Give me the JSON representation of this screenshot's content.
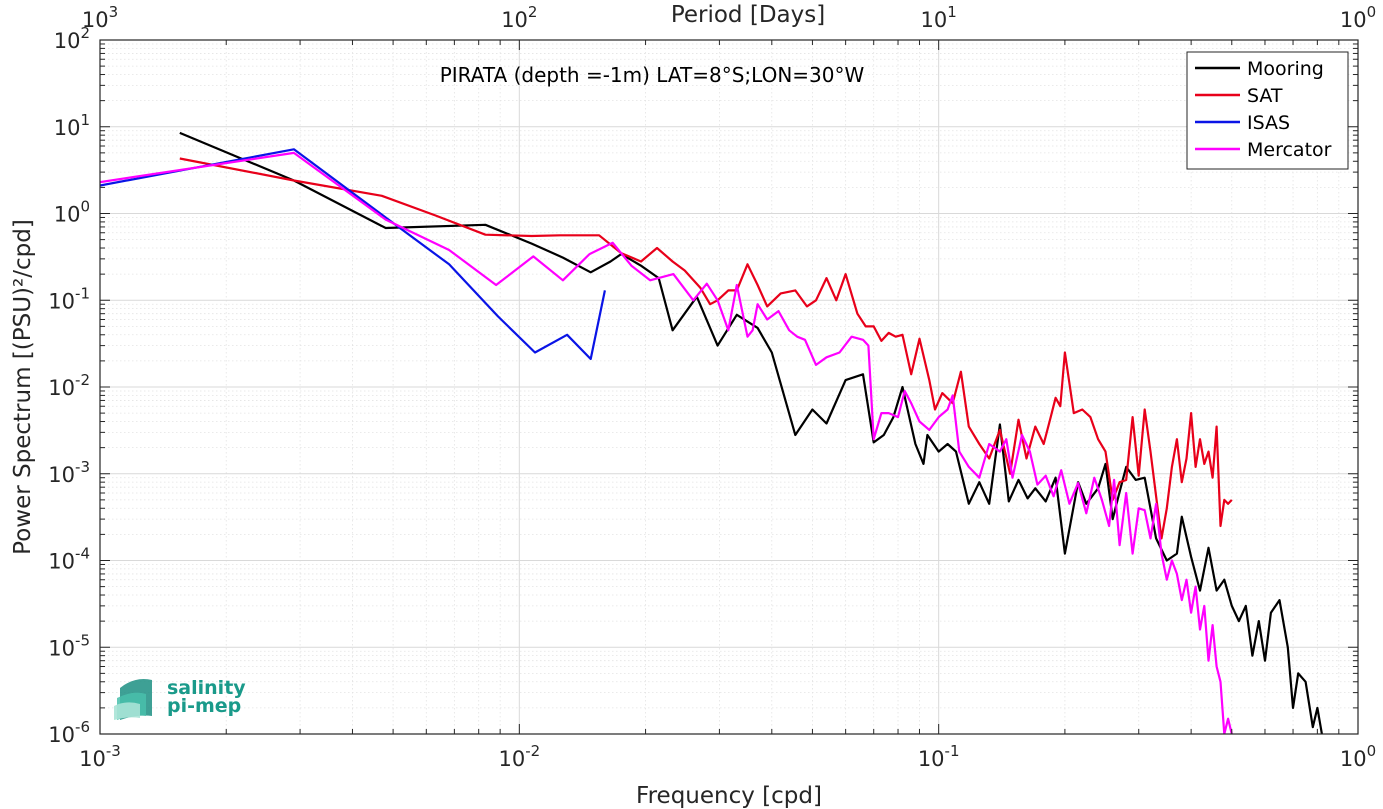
{
  "chart_data": {
    "type": "line",
    "x_scale": "log",
    "y_scale": "log",
    "xlim": [
      0.001,
      1
    ],
    "ylim": [
      1e-06,
      100
    ],
    "grid": true,
    "xlabel": "Frequency [cpd]",
    "ylabel": "Power Spectrum [(PSU)²/cpd]",
    "top_xlabel": "Period [Days]",
    "annotation": "PIRATA (depth =-1m) LAT=8°S;LON=30°W",
    "legend_position": "top-right",
    "x_ticks": [
      {
        "base": "10",
        "exp": "-3",
        "value": 0.001
      },
      {
        "base": "10",
        "exp": "-2",
        "value": 0.01
      },
      {
        "base": "10",
        "exp": "-1",
        "value": 0.1
      },
      {
        "base": "10",
        "exp": "0",
        "value": 1
      }
    ],
    "top_x_ticks": [
      {
        "base": "10",
        "exp": "3",
        "value": 0.001
      },
      {
        "base": "10",
        "exp": "2",
        "value": 0.01
      },
      {
        "base": "10",
        "exp": "1",
        "value": 0.1
      },
      {
        "base": "10",
        "exp": "0",
        "value": 1
      }
    ],
    "y_ticks": [
      {
        "base": "10",
        "exp": "2",
        "value": 100
      },
      {
        "base": "10",
        "exp": "1",
        "value": 10
      },
      {
        "base": "10",
        "exp": "0",
        "value": 1
      },
      {
        "base": "10",
        "exp": "-1",
        "value": 0.1
      },
      {
        "base": "10",
        "exp": "-2",
        "value": 0.01
      },
      {
        "base": "10",
        "exp": "-3",
        "value": 0.001
      },
      {
        "base": "10",
        "exp": "-4",
        "value": 0.0001
      },
      {
        "base": "10",
        "exp": "-5",
        "value": 1e-05
      },
      {
        "base": "10",
        "exp": "-6",
        "value": 1e-06
      }
    ],
    "series": [
      {
        "name": "Mooring",
        "color": "#000000",
        "points": [
          [
            0.00155,
            8.5
          ],
          [
            0.0029,
            2.4
          ],
          [
            0.0048,
            0.68
          ],
          [
            0.0083,
            0.74
          ],
          [
            0.0107,
            0.45
          ],
          [
            0.0127,
            0.31
          ],
          [
            0.0148,
            0.21
          ],
          [
            0.0165,
            0.28
          ],
          [
            0.0175,
            0.34
          ],
          [
            0.0195,
            0.25
          ],
          [
            0.0215,
            0.18
          ],
          [
            0.0232,
            0.045
          ],
          [
            0.0265,
            0.11
          ],
          [
            0.0297,
            0.03
          ],
          [
            0.033,
            0.068
          ],
          [
            0.037,
            0.048
          ],
          [
            0.04,
            0.025
          ],
          [
            0.0455,
            0.0028
          ],
          [
            0.05,
            0.0055
          ],
          [
            0.054,
            0.0038
          ],
          [
            0.06,
            0.012
          ],
          [
            0.066,
            0.014
          ],
          [
            0.07,
            0.0023
          ],
          [
            0.074,
            0.0028
          ],
          [
            0.078,
            0.0045
          ],
          [
            0.082,
            0.01
          ],
          [
            0.088,
            0.0022
          ],
          [
            0.092,
            0.0013
          ],
          [
            0.094,
            0.0028
          ],
          [
            0.1,
            0.0018
          ],
          [
            0.105,
            0.0022
          ],
          [
            0.11,
            0.0018
          ],
          [
            0.118,
            0.00045
          ],
          [
            0.125,
            0.0008
          ],
          [
            0.132,
            0.00045
          ],
          [
            0.14,
            0.0037
          ],
          [
            0.147,
            0.00048
          ],
          [
            0.155,
            0.00085
          ],
          [
            0.163,
            0.00052
          ],
          [
            0.17,
            0.00068
          ],
          [
            0.18,
            0.00048
          ],
          [
            0.19,
            0.0009
          ],
          [
            0.2,
            0.00012
          ],
          [
            0.215,
            0.0008
          ],
          [
            0.225,
            0.00045
          ],
          [
            0.24,
            0.00068
          ],
          [
            0.25,
            0.0013
          ],
          [
            0.26,
            0.0003
          ],
          [
            0.27,
            0.00062
          ],
          [
            0.28,
            0.0012
          ],
          [
            0.295,
            0.00085
          ],
          [
            0.31,
            0.0009
          ],
          [
            0.33,
            0.00018
          ],
          [
            0.35,
            0.0001
          ],
          [
            0.37,
            0.00012
          ],
          [
            0.38,
            0.00032
          ],
          [
            0.4,
            0.00011
          ],
          [
            0.42,
            4.5e-05
          ],
          [
            0.44,
            0.00014
          ],
          [
            0.46,
            4.5e-05
          ],
          [
            0.48,
            6e-05
          ],
          [
            0.5,
            3e-05
          ],
          [
            0.52,
            2e-05
          ],
          [
            0.54,
            3e-05
          ],
          [
            0.56,
            8e-06
          ],
          [
            0.58,
            2e-05
          ],
          [
            0.6,
            7e-06
          ],
          [
            0.62,
            2.5e-05
          ],
          [
            0.65,
            3.5e-05
          ],
          [
            0.68,
            1e-05
          ],
          [
            0.7,
            2e-06
          ],
          [
            0.72,
            5e-06
          ],
          [
            0.75,
            4e-06
          ],
          [
            0.78,
            1.2e-06
          ],
          [
            0.8,
            2e-06
          ],
          [
            0.82,
            1e-06
          ]
        ]
      },
      {
        "name": "SAT",
        "color": "#e8001a",
        "points": [
          [
            0.00155,
            4.3
          ],
          [
            0.0029,
            2.4
          ],
          [
            0.0047,
            1.6
          ],
          [
            0.0063,
            0.95
          ],
          [
            0.0083,
            0.57
          ],
          [
            0.0107,
            0.55
          ],
          [
            0.0125,
            0.56
          ],
          [
            0.0155,
            0.56
          ],
          [
            0.0175,
            0.35
          ],
          [
            0.0195,
            0.28
          ],
          [
            0.0213,
            0.4
          ],
          [
            0.0232,
            0.28
          ],
          [
            0.0248,
            0.22
          ],
          [
            0.027,
            0.14
          ],
          [
            0.0285,
            0.09
          ],
          [
            0.0297,
            0.1
          ],
          [
            0.0315,
            0.13
          ],
          [
            0.033,
            0.13
          ],
          [
            0.035,
            0.26
          ],
          [
            0.037,
            0.15
          ],
          [
            0.039,
            0.085
          ],
          [
            0.042,
            0.12
          ],
          [
            0.0455,
            0.13
          ],
          [
            0.0485,
            0.085
          ],
          [
            0.051,
            0.1
          ],
          [
            0.054,
            0.18
          ],
          [
            0.057,
            0.1
          ],
          [
            0.06,
            0.2
          ],
          [
            0.064,
            0.07
          ],
          [
            0.067,
            0.05
          ],
          [
            0.07,
            0.05
          ],
          [
            0.073,
            0.034
          ],
          [
            0.076,
            0.042
          ],
          [
            0.079,
            0.038
          ],
          [
            0.082,
            0.04
          ],
          [
            0.086,
            0.014
          ],
          [
            0.09,
            0.036
          ],
          [
            0.095,
            0.012
          ],
          [
            0.098,
            0.0055
          ],
          [
            0.102,
            0.0085
          ],
          [
            0.108,
            0.0065
          ],
          [
            0.113,
            0.015
          ],
          [
            0.118,
            0.0035
          ],
          [
            0.125,
            0.0022
          ],
          [
            0.132,
            0.0015
          ],
          [
            0.14,
            0.0032
          ],
          [
            0.148,
            0.001
          ],
          [
            0.155,
            0.0042
          ],
          [
            0.162,
            0.0015
          ],
          [
            0.17,
            0.0035
          ],
          [
            0.178,
            0.0022
          ],
          [
            0.185,
            0.0045
          ],
          [
            0.19,
            0.0075
          ],
          [
            0.195,
            0.006
          ],
          [
            0.2,
            0.025
          ],
          [
            0.21,
            0.005
          ],
          [
            0.22,
            0.0055
          ],
          [
            0.23,
            0.0045
          ],
          [
            0.24,
            0.0025
          ],
          [
            0.25,
            0.0018
          ],
          [
            0.26,
            0.0005
          ],
          [
            0.27,
            0.0008
          ],
          [
            0.28,
            0.00085
          ],
          [
            0.29,
            0.0045
          ],
          [
            0.3,
            0.00095
          ],
          [
            0.31,
            0.0055
          ],
          [
            0.32,
            0.0018
          ],
          [
            0.33,
            0.00055
          ],
          [
            0.34,
            0.00018
          ],
          [
            0.35,
            0.0004
          ],
          [
            0.36,
            0.0012
          ],
          [
            0.37,
            0.0025
          ],
          [
            0.38,
            0.0008
          ],
          [
            0.39,
            0.0015
          ],
          [
            0.4,
            0.005
          ],
          [
            0.41,
            0.0012
          ],
          [
            0.42,
            0.0025
          ],
          [
            0.43,
            0.0013
          ],
          [
            0.44,
            0.0018
          ],
          [
            0.45,
            0.0009
          ],
          [
            0.46,
            0.0035
          ],
          [
            0.47,
            0.00025
          ],
          [
            0.48,
            0.0005
          ],
          [
            0.49,
            0.00045
          ],
          [
            0.5,
            0.0005
          ]
        ]
      },
      {
        "name": "ISAS",
        "color": "#0a14e6",
        "points": [
          [
            0.001,
            2.1
          ],
          [
            0.0029,
            5.5
          ],
          [
            0.0048,
            0.9
          ],
          [
            0.0068,
            0.26
          ],
          [
            0.0089,
            0.065
          ],
          [
            0.0109,
            0.025
          ],
          [
            0.013,
            0.04
          ],
          [
            0.0148,
            0.021
          ],
          [
            0.016,
            0.13
          ]
        ]
      },
      {
        "name": "Mercator",
        "color": "#ff00ff",
        "points": [
          [
            0.001,
            2.3
          ],
          [
            0.0029,
            5.0
          ],
          [
            0.0048,
            0.85
          ],
          [
            0.0068,
            0.38
          ],
          [
            0.0088,
            0.15
          ],
          [
            0.0108,
            0.32
          ],
          [
            0.0127,
            0.17
          ],
          [
            0.0147,
            0.34
          ],
          [
            0.0167,
            0.46
          ],
          [
            0.0185,
            0.25
          ],
          [
            0.0205,
            0.17
          ],
          [
            0.0233,
            0.2
          ],
          [
            0.026,
            0.1
          ],
          [
            0.028,
            0.155
          ],
          [
            0.0297,
            0.1
          ],
          [
            0.0315,
            0.045
          ],
          [
            0.033,
            0.15
          ],
          [
            0.035,
            0.038
          ],
          [
            0.036,
            0.045
          ],
          [
            0.037,
            0.09
          ],
          [
            0.039,
            0.06
          ],
          [
            0.0415,
            0.075
          ],
          [
            0.044,
            0.045
          ],
          [
            0.046,
            0.038
          ],
          [
            0.048,
            0.035
          ],
          [
            0.051,
            0.018
          ],
          [
            0.054,
            0.022
          ],
          [
            0.058,
            0.025
          ],
          [
            0.062,
            0.038
          ],
          [
            0.066,
            0.035
          ],
          [
            0.068,
            0.03
          ],
          [
            0.07,
            0.0025
          ],
          [
            0.073,
            0.005
          ],
          [
            0.076,
            0.005
          ],
          [
            0.08,
            0.0045
          ],
          [
            0.083,
            0.009
          ],
          [
            0.086,
            0.0065
          ],
          [
            0.09,
            0.004
          ],
          [
            0.095,
            0.0032
          ],
          [
            0.1,
            0.0045
          ],
          [
            0.105,
            0.0055
          ],
          [
            0.108,
            0.008
          ],
          [
            0.112,
            0.0018
          ],
          [
            0.118,
            0.0012
          ],
          [
            0.125,
            0.0009
          ],
          [
            0.132,
            0.0022
          ],
          [
            0.14,
            0.0018
          ],
          [
            0.145,
            0.0025
          ],
          [
            0.15,
            0.0009
          ],
          [
            0.158,
            0.0028
          ],
          [
            0.165,
            0.0018
          ],
          [
            0.172,
            0.00075
          ],
          [
            0.18,
            0.00095
          ],
          [
            0.188,
            0.00055
          ],
          [
            0.196,
            0.0011
          ],
          [
            0.205,
            0.00045
          ],
          [
            0.215,
            0.00078
          ],
          [
            0.225,
            0.00035
          ],
          [
            0.235,
            0.0009
          ],
          [
            0.245,
            0.0005
          ],
          [
            0.255,
            0.00025
          ],
          [
            0.262,
            0.00085
          ],
          [
            0.27,
            0.00015
          ],
          [
            0.28,
            0.0006
          ],
          [
            0.29,
            0.00012
          ],
          [
            0.3,
            0.0004
          ],
          [
            0.31,
            0.00038
          ],
          [
            0.32,
            0.00018
          ],
          [
            0.33,
            0.00045
          ],
          [
            0.34,
            0.00012
          ],
          [
            0.35,
            6e-05
          ],
          [
            0.36,
            0.0001
          ],
          [
            0.37,
            7e-05
          ],
          [
            0.38,
            3.5e-05
          ],
          [
            0.39,
            6e-05
          ],
          [
            0.4,
            2.5e-05
          ],
          [
            0.41,
            5e-05
          ],
          [
            0.42,
            1.6e-05
          ],
          [
            0.43,
            3e-05
          ],
          [
            0.44,
            7e-06
          ],
          [
            0.45,
            1.8e-05
          ],
          [
            0.46,
            6e-06
          ],
          [
            0.47,
            4e-06
          ],
          [
            0.48,
            1e-06
          ],
          [
            0.49,
            1.5e-06
          ],
          [
            0.5,
            1e-06
          ]
        ]
      }
    ]
  },
  "logo": {
    "line1": "salinity",
    "line2": "pi-mep"
  }
}
